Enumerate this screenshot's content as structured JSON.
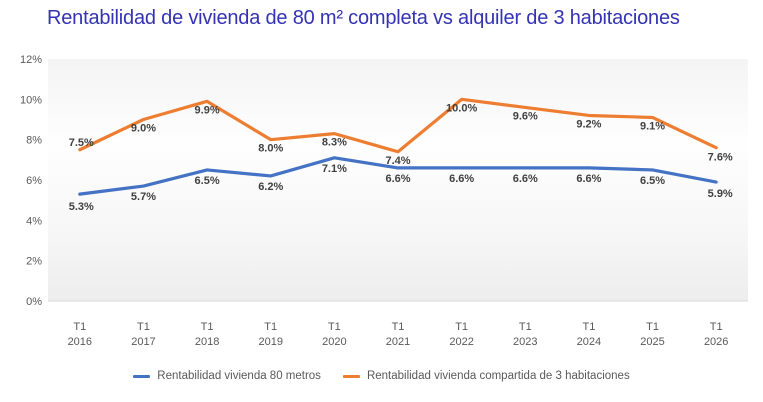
{
  "title": "Rentabilidad de vivienda de 80 m² completa vs alquiler de 3 habitaciones",
  "chart_data": {
    "type": "line",
    "title": "Rentabilidad de vivienda de 80 m² completa vs alquiler de 3 habitaciones",
    "categories": [
      "T1 2016",
      "T1 2017",
      "T1 2018",
      "T1 2019",
      "T1 2020",
      "T1 2021",
      "T1 2022",
      "T1 2023",
      "T1 2024",
      "T1 2025",
      "T1 2026"
    ],
    "series": [
      {
        "name": "Rentabilidad vivienda 80 metros",
        "color": "#4472C4",
        "values": [
          5.3,
          5.7,
          6.5,
          6.2,
          7.1,
          6.6,
          6.6,
          6.6,
          6.6,
          6.5,
          5.9
        ]
      },
      {
        "name": "Rentabilidad vivienda compartida de 3 habitaciones",
        "color": "#ED7D31",
        "values": [
          7.5,
          9.0,
          9.9,
          8.0,
          8.3,
          7.4,
          10.0,
          9.6,
          9.2,
          9.1,
          7.6
        ]
      }
    ],
    "y_axis": {
      "min": 0,
      "max": 12,
      "step": 2,
      "suffix": "%"
    },
    "data_labels": true,
    "grid": false,
    "legend_position": "bottom"
  },
  "colors": {
    "title_text": "#3333B3",
    "axis_text": "#595959",
    "data_label_text": "#404040",
    "axis_line": "#D9D9D9"
  }
}
